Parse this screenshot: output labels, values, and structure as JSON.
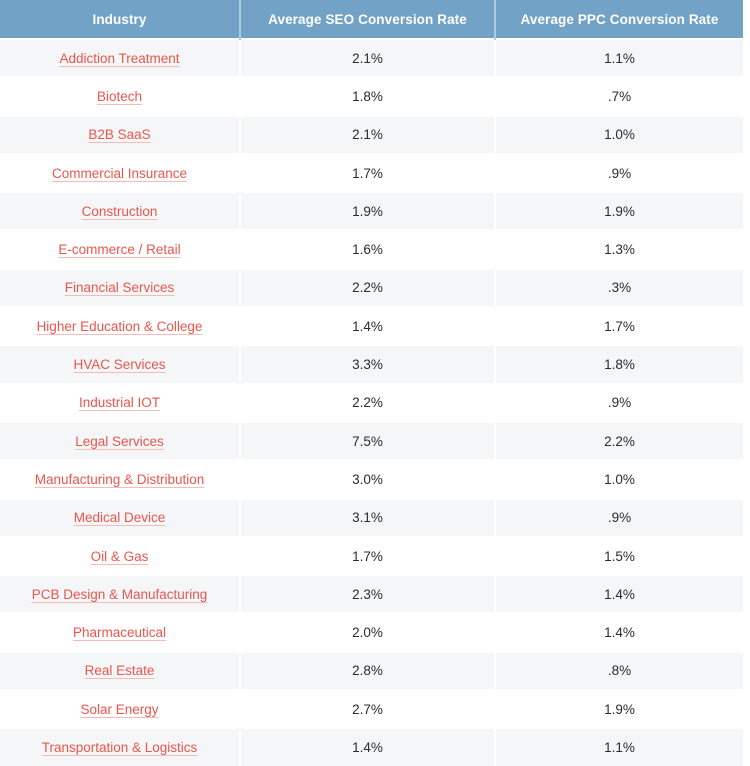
{
  "table": {
    "columns": [
      "Industry",
      "Average SEO Conversion Rate",
      "Average PPC Conversion Rate"
    ],
    "rows": [
      {
        "industry": "Addiction Treatment",
        "seo": "2.1%",
        "ppc": "1.1%"
      },
      {
        "industry": "Biotech",
        "seo": "1.8%",
        "ppc": ".7%"
      },
      {
        "industry": "B2B SaaS",
        "seo": "2.1%",
        "ppc": "1.0%"
      },
      {
        "industry": "Commercial Insurance",
        "seo": "1.7%",
        "ppc": ".9%"
      },
      {
        "industry": "Construction",
        "seo": "1.9%",
        "ppc": "1.9%"
      },
      {
        "industry": "E-commerce / Retail",
        "seo": "1.6%",
        "ppc": "1.3%"
      },
      {
        "industry": "Financial Services",
        "seo": "2.2%",
        "ppc": ".3%"
      },
      {
        "industry": "Higher Education & College",
        "seo": "1.4%",
        "ppc": "1.7%"
      },
      {
        "industry": "HVAC Services",
        "seo": "3.3%",
        "ppc": "1.8%"
      },
      {
        "industry": "Industrial IOT",
        "seo": "2.2%",
        "ppc": ".9%"
      },
      {
        "industry": "Legal Services",
        "seo": "7.5%",
        "ppc": "2.2%"
      },
      {
        "industry": "Manufacturing & Distribution",
        "seo": "3.0%",
        "ppc": "1.0%"
      },
      {
        "industry": "Medical Device",
        "seo": "3.1%",
        "ppc": ".9%"
      },
      {
        "industry": "Oil & Gas",
        "seo": "1.7%",
        "ppc": "1.5%"
      },
      {
        "industry": "PCB Design & Manufacturing",
        "seo": "2.3%",
        "ppc": "1.4%"
      },
      {
        "industry": "Pharmaceutical",
        "seo": "2.0%",
        "ppc": "1.4%"
      },
      {
        "industry": "Real Estate",
        "seo": "2.8%",
        "ppc": ".8%"
      },
      {
        "industry": "Solar Energy",
        "seo": "2.7%",
        "ppc": "1.9%"
      },
      {
        "industry": "Transportation & Logistics",
        "seo": "1.4%",
        "ppc": "1.1%"
      }
    ]
  },
  "colors": {
    "header_bg": "#72A2C6",
    "header_separator": "#AECBE0",
    "header_text": "#FFFFFF",
    "row_stripe_bg": "#F5F6F7",
    "row_bg": "#FFFFFF",
    "cell_separator": "#FFFFFF",
    "link": "#E9564C",
    "link_underline": "#F5BCB6",
    "value_text": "#2B2B2B"
  },
  "chart_data": {
    "type": "table",
    "title": "",
    "columns": [
      "Industry",
      "Average SEO Conversion Rate",
      "Average PPC Conversion Rate"
    ],
    "categories": [
      "Addiction Treatment",
      "Biotech",
      "B2B SaaS",
      "Commercial Insurance",
      "Construction",
      "E-commerce / Retail",
      "Financial Services",
      "Higher Education & College",
      "HVAC Services",
      "Industrial IOT",
      "Legal Services",
      "Manufacturing & Distribution",
      "Medical Device",
      "Oil & Gas",
      "PCB Design & Manufacturing",
      "Pharmaceutical",
      "Real Estate",
      "Solar Energy",
      "Transportation & Logistics"
    ],
    "series": [
      {
        "name": "Average SEO Conversion Rate",
        "values": [
          2.1,
          1.8,
          2.1,
          1.7,
          1.9,
          1.6,
          2.2,
          1.4,
          3.3,
          2.2,
          7.5,
          3.0,
          3.1,
          1.7,
          2.3,
          2.0,
          2.8,
          2.7,
          1.4
        ]
      },
      {
        "name": "Average PPC Conversion Rate",
        "values": [
          1.1,
          0.7,
          1.0,
          0.9,
          1.9,
          1.3,
          0.3,
          1.7,
          1.8,
          0.9,
          2.2,
          1.0,
          0.9,
          1.5,
          1.4,
          1.4,
          0.8,
          1.9,
          1.1
        ]
      }
    ],
    "units": "%",
    "layout": {
      "header_background": "#72A2C6",
      "zebra_striping": true
    }
  }
}
